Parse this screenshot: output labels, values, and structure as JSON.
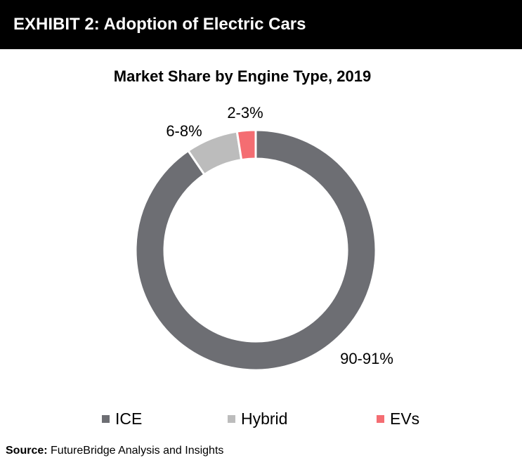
{
  "exhibit": {
    "title": "EXHIBIT 2: Adoption of Electric Cars"
  },
  "chart_data": {
    "type": "pie",
    "variant": "donut",
    "title": "Market Share by Engine Type, 2019",
    "categories": [
      "ICE",
      "Hybrid",
      "EVs"
    ],
    "values": [
      90.5,
      7,
      2.5
    ],
    "data_labels": [
      "90-91%",
      "6-8%",
      "2-3%"
    ],
    "colors": [
      "#6d6e73",
      "#bcbcbc",
      "#f46d72"
    ],
    "legend_position": "bottom",
    "start_angle_deg": 0,
    "direction": "clockwise"
  },
  "source": {
    "label": "Source:",
    "text": " FutureBridge Analysis and Insights"
  }
}
